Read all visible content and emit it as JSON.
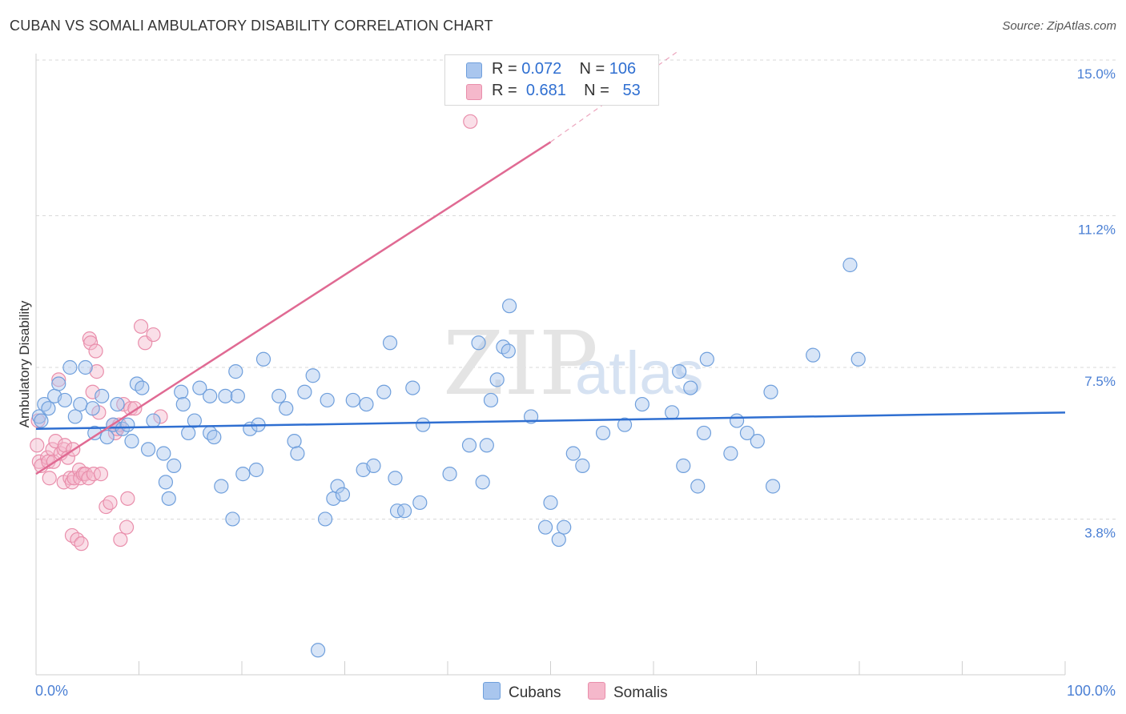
{
  "header": {
    "title": "CUBAN VS SOMALI AMBULATORY DISABILITY CORRELATION CHART",
    "source": "Source: ZipAtlas.com"
  },
  "watermark": {
    "zip": "ZIP",
    "atlas": "atlas"
  },
  "legend": {
    "rows": [
      {
        "r_label": "R =",
        "r_value": "0.072",
        "n_label": "N =",
        "n_value": "106"
      },
      {
        "r_label": "R =",
        "r_value": "0.681",
        "n_label": "N =",
        "n_value": "53"
      }
    ],
    "bottom": [
      "Cubans",
      "Somalis"
    ]
  },
  "colors": {
    "cuban_fill": "#a9c6ee",
    "cuban_stroke": "#6f9fdc",
    "cuban_line": "#2f6fd1",
    "somali_fill": "#f5b8cb",
    "somali_stroke": "#e98eab",
    "somali_line": "#e06a93",
    "grid": "#d9d9d9"
  },
  "chart_data": {
    "type": "scatter",
    "title": "CUBAN VS SOMALI AMBULATORY DISABILITY CORRELATION CHART",
    "xlabel": "",
    "ylabel": "Ambulatory Disability",
    "xlim": [
      0,
      100
    ],
    "ylim": [
      0,
      15.5
    ],
    "x_tick_labels": [
      "0.0%",
      "100.0%"
    ],
    "y_ticks": [
      3.8,
      7.5,
      11.2,
      15.0
    ],
    "y_tick_labels": [
      "3.8%",
      "7.5%",
      "11.2%",
      "15.0%"
    ],
    "grid": true,
    "legend_position": "top-center",
    "series": [
      {
        "name": "Cubans",
        "r": 0.072,
        "n": 106,
        "trend": {
          "x": [
            0,
            100
          ],
          "y": [
            6.0,
            6.4
          ]
        },
        "points": [
          [
            0.3,
            6.3
          ],
          [
            0.5,
            6.2
          ],
          [
            0.8,
            6.6
          ],
          [
            1.2,
            6.5
          ],
          [
            1.8,
            6.8
          ],
          [
            2.2,
            7.1
          ],
          [
            2.8,
            6.7
          ],
          [
            3.3,
            7.5
          ],
          [
            3.8,
            6.3
          ],
          [
            4.3,
            6.6
          ],
          [
            4.8,
            7.5
          ],
          [
            5.5,
            6.5
          ],
          [
            5.7,
            5.9
          ],
          [
            6.4,
            6.8
          ],
          [
            6.9,
            5.8
          ],
          [
            7.5,
            6.1
          ],
          [
            7.9,
            6.6
          ],
          [
            8.4,
            6.0
          ],
          [
            8.9,
            6.1
          ],
          [
            9.3,
            5.7
          ],
          [
            9.8,
            7.1
          ],
          [
            10.3,
            7.0
          ],
          [
            10.9,
            5.5
          ],
          [
            11.4,
            6.2
          ],
          [
            12.4,
            5.4
          ],
          [
            12.6,
            4.7
          ],
          [
            12.9,
            4.3
          ],
          [
            13.4,
            5.1
          ],
          [
            14.1,
            6.9
          ],
          [
            14.3,
            6.6
          ],
          [
            14.8,
            5.9
          ],
          [
            15.4,
            6.2
          ],
          [
            15.9,
            7.0
          ],
          [
            16.9,
            5.9
          ],
          [
            16.9,
            6.8
          ],
          [
            17.3,
            5.8
          ],
          [
            18.0,
            4.6
          ],
          [
            18.4,
            6.8
          ],
          [
            19.1,
            3.8
          ],
          [
            19.4,
            7.4
          ],
          [
            19.6,
            6.8
          ],
          [
            20.1,
            4.9
          ],
          [
            20.8,
            6.0
          ],
          [
            21.4,
            5.0
          ],
          [
            21.6,
            6.1
          ],
          [
            22.1,
            7.7
          ],
          [
            23.6,
            6.8
          ],
          [
            24.3,
            6.5
          ],
          [
            25.1,
            5.7
          ],
          [
            25.4,
            5.4
          ],
          [
            26.1,
            6.9
          ],
          [
            26.9,
            7.3
          ],
          [
            27.4,
            0.6
          ],
          [
            28.1,
            3.8
          ],
          [
            28.3,
            6.7
          ],
          [
            28.9,
            4.3
          ],
          [
            29.3,
            4.6
          ],
          [
            29.8,
            4.4
          ],
          [
            30.8,
            6.7
          ],
          [
            31.8,
            5.0
          ],
          [
            32.1,
            6.6
          ],
          [
            32.8,
            5.1
          ],
          [
            33.8,
            6.9
          ],
          [
            34.4,
            8.1
          ],
          [
            34.9,
            4.8
          ],
          [
            35.1,
            4.0
          ],
          [
            35.8,
            4.0
          ],
          [
            36.6,
            7.0
          ],
          [
            37.3,
            4.2
          ],
          [
            37.6,
            6.1
          ],
          [
            40.2,
            4.9
          ],
          [
            42.1,
            5.6
          ],
          [
            43.0,
            8.1
          ],
          [
            43.4,
            4.7
          ],
          [
            43.8,
            5.6
          ],
          [
            44.2,
            6.7
          ],
          [
            44.8,
            7.2
          ],
          [
            45.4,
            8.0
          ],
          [
            45.9,
            7.9
          ],
          [
            46.0,
            9.0
          ],
          [
            48.1,
            6.3
          ],
          [
            49.5,
            3.6
          ],
          [
            50.0,
            4.2
          ],
          [
            50.8,
            3.3
          ],
          [
            51.3,
            3.6
          ],
          [
            52.2,
            5.4
          ],
          [
            53.1,
            5.1
          ],
          [
            55.1,
            5.9
          ],
          [
            57.2,
            6.1
          ],
          [
            58.9,
            6.6
          ],
          [
            61.8,
            6.4
          ],
          [
            62.5,
            7.4
          ],
          [
            62.9,
            5.1
          ],
          [
            63.6,
            7.0
          ],
          [
            64.3,
            4.6
          ],
          [
            64.9,
            5.9
          ],
          [
            65.2,
            7.7
          ],
          [
            67.5,
            5.4
          ],
          [
            68.1,
            6.2
          ],
          [
            69.1,
            5.9
          ],
          [
            70.1,
            5.7
          ],
          [
            71.4,
            6.9
          ],
          [
            71.6,
            4.6
          ],
          [
            75.5,
            7.8
          ],
          [
            79.1,
            10.0
          ],
          [
            79.9,
            7.7
          ]
        ]
      },
      {
        "name": "Somalis",
        "r": 0.681,
        "n": 53,
        "trend": {
          "x": [
            0,
            50
          ],
          "y": [
            4.9,
            13.0
          ],
          "dashed_to": {
            "x": 62.3,
            "y": 15.2
          }
        },
        "points": [
          [
            0.1,
            5.6
          ],
          [
            0.2,
            6.2
          ],
          [
            0.3,
            5.2
          ],
          [
            0.5,
            5.1
          ],
          [
            1.1,
            5.3
          ],
          [
            1.2,
            5.2
          ],
          [
            1.3,
            4.8
          ],
          [
            1.6,
            5.5
          ],
          [
            1.7,
            5.2
          ],
          [
            1.9,
            5.7
          ],
          [
            2.2,
            7.2
          ],
          [
            2.4,
            5.4
          ],
          [
            2.7,
            5.5
          ],
          [
            2.7,
            4.7
          ],
          [
            2.8,
            5.6
          ],
          [
            3.1,
            5.3
          ],
          [
            3.3,
            4.8
          ],
          [
            3.5,
            4.7
          ],
          [
            3.5,
            3.4
          ],
          [
            3.6,
            5.5
          ],
          [
            3.7,
            4.8
          ],
          [
            4.0,
            3.3
          ],
          [
            4.2,
            5.0
          ],
          [
            4.3,
            4.8
          ],
          [
            4.4,
            3.2
          ],
          [
            4.6,
            4.9
          ],
          [
            4.8,
            4.9
          ],
          [
            5.1,
            4.8
          ],
          [
            5.2,
            8.2
          ],
          [
            5.3,
            8.1
          ],
          [
            5.5,
            6.9
          ],
          [
            5.6,
            4.9
          ],
          [
            5.8,
            7.9
          ],
          [
            5.9,
            7.4
          ],
          [
            6.1,
            6.4
          ],
          [
            6.3,
            4.9
          ],
          [
            6.8,
            4.1
          ],
          [
            7.2,
            4.2
          ],
          [
            7.5,
            6.1
          ],
          [
            7.7,
            5.9
          ],
          [
            7.9,
            6.0
          ],
          [
            8.1,
            6.1
          ],
          [
            8.2,
            3.3
          ],
          [
            8.5,
            6.6
          ],
          [
            8.8,
            3.6
          ],
          [
            8.9,
            4.3
          ],
          [
            9.2,
            6.5
          ],
          [
            9.6,
            6.5
          ],
          [
            10.2,
            8.5
          ],
          [
            10.6,
            8.1
          ],
          [
            11.4,
            8.3
          ],
          [
            12.1,
            6.3
          ],
          [
            42.2,
            13.5
          ]
        ]
      }
    ]
  }
}
